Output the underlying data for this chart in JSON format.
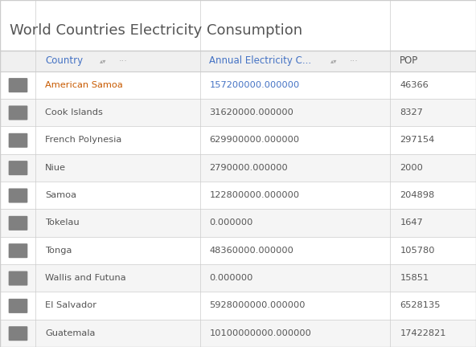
{
  "title": "World Countries Electricity Consumption",
  "title_color": "#555555",
  "title_fontsize": 13,
  "header_col0_color": "#4472c4",
  "header_col1_color": "#4472c4",
  "header_col2_color": "#555555",
  "rows": [
    [
      "American Samoa",
      "157200000.000000",
      "46366"
    ],
    [
      "Cook Islands",
      "31620000.000000",
      "8327"
    ],
    [
      "French Polynesia",
      "629900000.000000",
      "297154"
    ],
    [
      "Niue",
      "2790000.000000",
      "2000"
    ],
    [
      "Samoa",
      "122800000.000000",
      "204898"
    ],
    [
      "Tokelau",
      "0.000000",
      "1647"
    ],
    [
      "Tonga",
      "48360000.000000",
      "105780"
    ],
    [
      "Wallis and Futuna",
      "0.000000",
      "15851"
    ],
    [
      "El Salvador",
      "5928000000.000000",
      "6528135"
    ],
    [
      "Guatemala",
      "10100000000.000000",
      "17422821"
    ]
  ],
  "row_colors_alt": [
    "#ffffff",
    "#f5f5f5"
  ],
  "country_color_orange": "#c85a00",
  "country_color_gray": "#555555",
  "elec_color_blue": "#4472c4",
  "pop_color": "#555555",
  "icon_color": "#808080",
  "border_color": "#cccccc",
  "bg_color": "#ffffff",
  "header_bg": "#f0f0f0"
}
